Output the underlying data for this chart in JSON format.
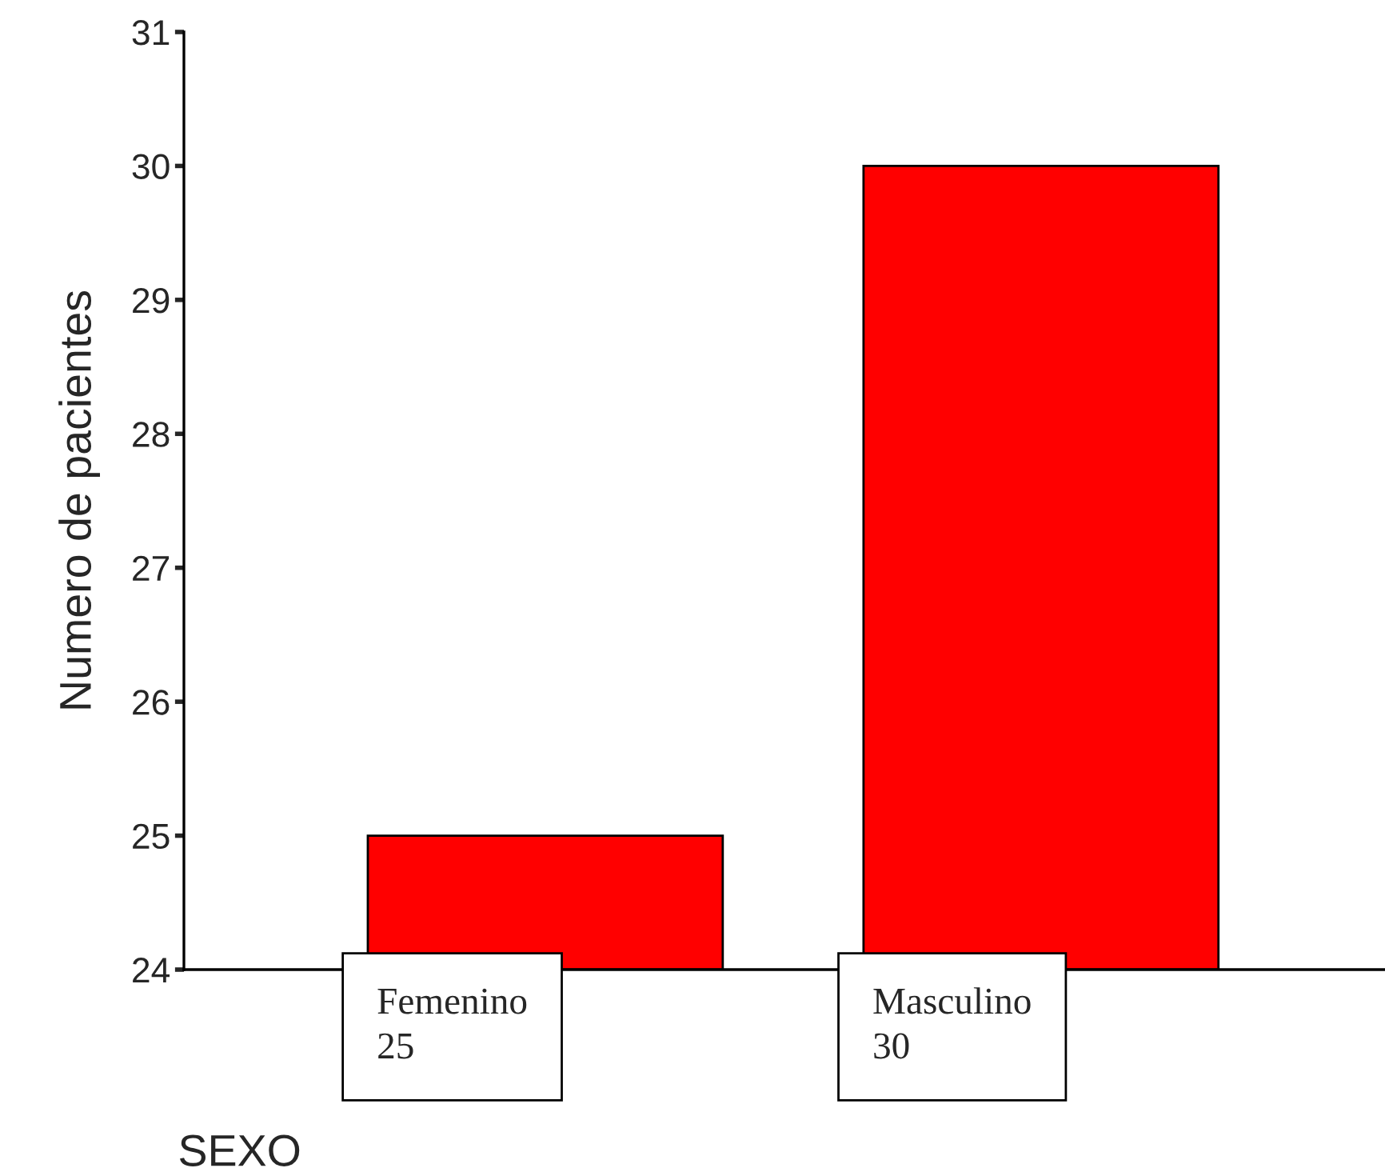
{
  "chart_data": {
    "type": "bar",
    "xlabel": "SEXO",
    "ylabel": "Numero de pacientes",
    "categories": [
      "Femenino",
      "Masculino"
    ],
    "values": [
      25,
      30
    ],
    "color": "#ff0000",
    "ylim": [
      24,
      31
    ],
    "yticks": [
      24,
      25,
      26,
      27,
      28,
      29,
      30,
      31
    ],
    "data_labels": true,
    "grid": false,
    "legend": false
  }
}
